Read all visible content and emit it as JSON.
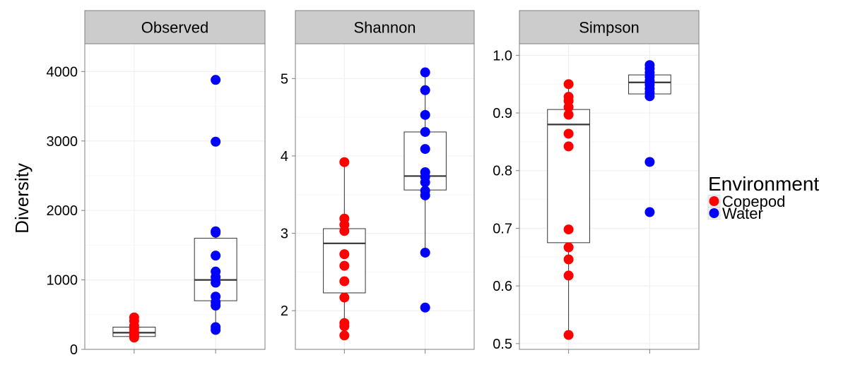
{
  "chart_data": {
    "type": "boxplot-with-points",
    "ylabel": "Diversity",
    "legend": {
      "title": "Environment",
      "placement": "right",
      "entries": [
        {
          "name": "Copepod",
          "color": "#ff0000"
        },
        {
          "name": "Water",
          "color": "#0000ff"
        }
      ]
    },
    "grid": true,
    "panels": [
      {
        "title": "Observed",
        "ylim": [
          0,
          4400
        ],
        "yticks": [
          0,
          1000,
          2000,
          3000,
          4000
        ],
        "ytick_labels": [
          "0",
          "1000",
          "2000",
          "3000",
          "4000"
        ],
        "groups": [
          {
            "name": "Copepod",
            "box": {
              "lower": 185,
              "q1": 185,
              "median": 240,
              "q3": 320,
              "upper": 320
            },
            "points": [
              460,
              410,
              340,
              300,
              250,
              220,
              200,
              170
            ]
          },
          {
            "name": "Water",
            "box": {
              "lower": 270,
              "q1": 700,
              "median": 1000,
              "q3": 1600,
              "upper": 1700
            },
            "points": [
              3880,
              2990,
              1700,
              1680,
              1350,
              1120,
              1040,
              960,
              760,
              680,
              630,
              320,
              280
            ]
          }
        ]
      },
      {
        "title": "Shannon",
        "ylim": [
          1.5,
          5.45
        ],
        "yticks": [
          2,
          3,
          4,
          5
        ],
        "ytick_labels": [
          "2",
          "3",
          "4",
          "5"
        ],
        "groups": [
          {
            "name": "Copepod",
            "box": {
              "lower": 1.68,
              "q1": 2.23,
              "median": 2.87,
              "q3": 3.06,
              "upper": 3.92
            },
            "points": [
              3.92,
              3.19,
              3.11,
              3.03,
              2.73,
              2.58,
              2.38,
              2.17,
              1.84,
              1.8,
              1.68
            ]
          },
          {
            "name": "Water",
            "box": {
              "lower": 2.75,
              "q1": 3.56,
              "median": 3.74,
              "q3": 4.31,
              "upper": 5.08
            },
            "points": [
              5.08,
              4.85,
              4.53,
              4.31,
              4.09,
              3.79,
              3.73,
              3.66,
              3.55,
              3.49,
              2.75,
              2.04
            ]
          }
        ]
      },
      {
        "title": "Simpson",
        "ylim": [
          0.49,
          1.02
        ],
        "yticks": [
          0.5,
          0.6,
          0.7,
          0.8,
          0.9,
          1.0
        ],
        "ytick_labels": [
          "0.5",
          "0.6",
          "0.7",
          "0.8",
          "0.9",
          "1.0"
        ],
        "groups": [
          {
            "name": "Copepod",
            "box": {
              "lower": 0.515,
              "q1": 0.675,
              "median": 0.88,
              "q3": 0.906,
              "upper": 0.95
            },
            "points": [
              0.95,
              0.928,
              0.921,
              0.91,
              0.897,
              0.864,
              0.842,
              0.698,
              0.667,
              0.646,
              0.618,
              0.515
            ]
          },
          {
            "name": "Water",
            "box": {
              "lower": 0.93,
              "q1": 0.933,
              "median": 0.953,
              "q3": 0.966,
              "upper": 0.983
            },
            "points": [
              0.983,
              0.977,
              0.97,
              0.963,
              0.956,
              0.949,
              0.942,
              0.936,
              0.929,
              0.815,
              0.728
            ]
          }
        ]
      }
    ]
  },
  "colors": {
    "panel_background": "#ffffff",
    "strip_background": "#cccccc",
    "grid": "#f0f0f0",
    "border": "#7f7f7f",
    "box_line": "#333333"
  }
}
